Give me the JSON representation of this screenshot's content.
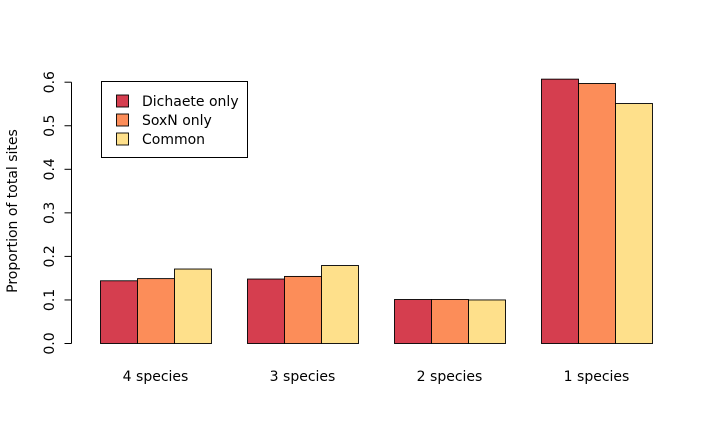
{
  "chart_data": {
    "type": "bar",
    "categories": [
      "4 species",
      "3 species",
      "2 species",
      "1 species"
    ],
    "series": [
      {
        "name": "Dichaete only",
        "color": "#d53e4f",
        "values": [
          0.144,
          0.148,
          0.101,
          0.607
        ]
      },
      {
        "name": "SoxN only",
        "color": "#fc8d59",
        "values": [
          0.149,
          0.154,
          0.101,
          0.597
        ]
      },
      {
        "name": "Common",
        "color": "#fee08b",
        "values": [
          0.171,
          0.179,
          0.1,
          0.551
        ]
      }
    ],
    "title": "",
    "xlabel": "",
    "ylabel": "Proportion of total sites",
    "ylim": [
      0,
      0.62
    ],
    "yticks": [
      "0.0",
      "0.1",
      "0.2",
      "0.3",
      "0.4",
      "0.5",
      "0.6"
    ],
    "grid": false,
    "legend_position": "top-left"
  }
}
